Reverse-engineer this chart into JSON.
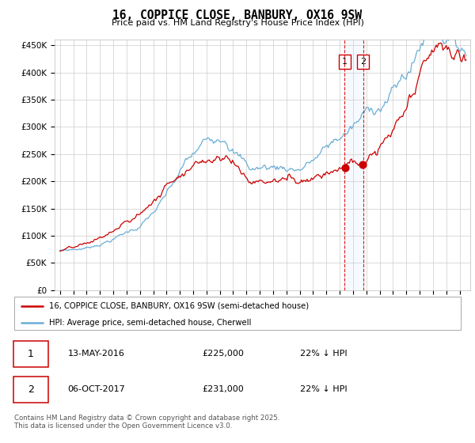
{
  "title": "16, COPPICE CLOSE, BANBURY, OX16 9SW",
  "subtitle": "Price paid vs. HM Land Registry's House Price Index (HPI)",
  "legend_line1": "16, COPPICE CLOSE, BANBURY, OX16 9SW (semi-detached house)",
  "legend_line2": "HPI: Average price, semi-detached house, Cherwell",
  "transaction1_date": "13-MAY-2016",
  "transaction1_price": "£225,000",
  "transaction1_hpi": "22% ↓ HPI",
  "transaction2_date": "06-OCT-2017",
  "transaction2_price": "£231,000",
  "transaction2_hpi": "22% ↓ HPI",
  "footer": "Contains HM Land Registry data © Crown copyright and database right 2025.\nThis data is licensed under the Open Government Licence v3.0.",
  "yticks": [
    0,
    50000,
    100000,
    150000,
    200000,
    250000,
    300000,
    350000,
    400000,
    450000
  ],
  "ytick_labels": [
    "£0",
    "£50K",
    "£100K",
    "£150K",
    "£200K",
    "£250K",
    "£300K",
    "£350K",
    "£400K",
    "£450K"
  ],
  "hpi_color": "#6baed6",
  "price_color": "#cc0000",
  "vline_color": "#dd0000",
  "shade_color": "#ddeeff",
  "background_color": "#ffffff",
  "grid_color": "#cccccc",
  "tx1_x": 2016.37,
  "tx2_x": 2017.76,
  "tx1_y": 225000,
  "tx2_y": 231000,
  "ylim_max": 460000,
  "xmin": 1994.6,
  "xmax": 2025.8
}
